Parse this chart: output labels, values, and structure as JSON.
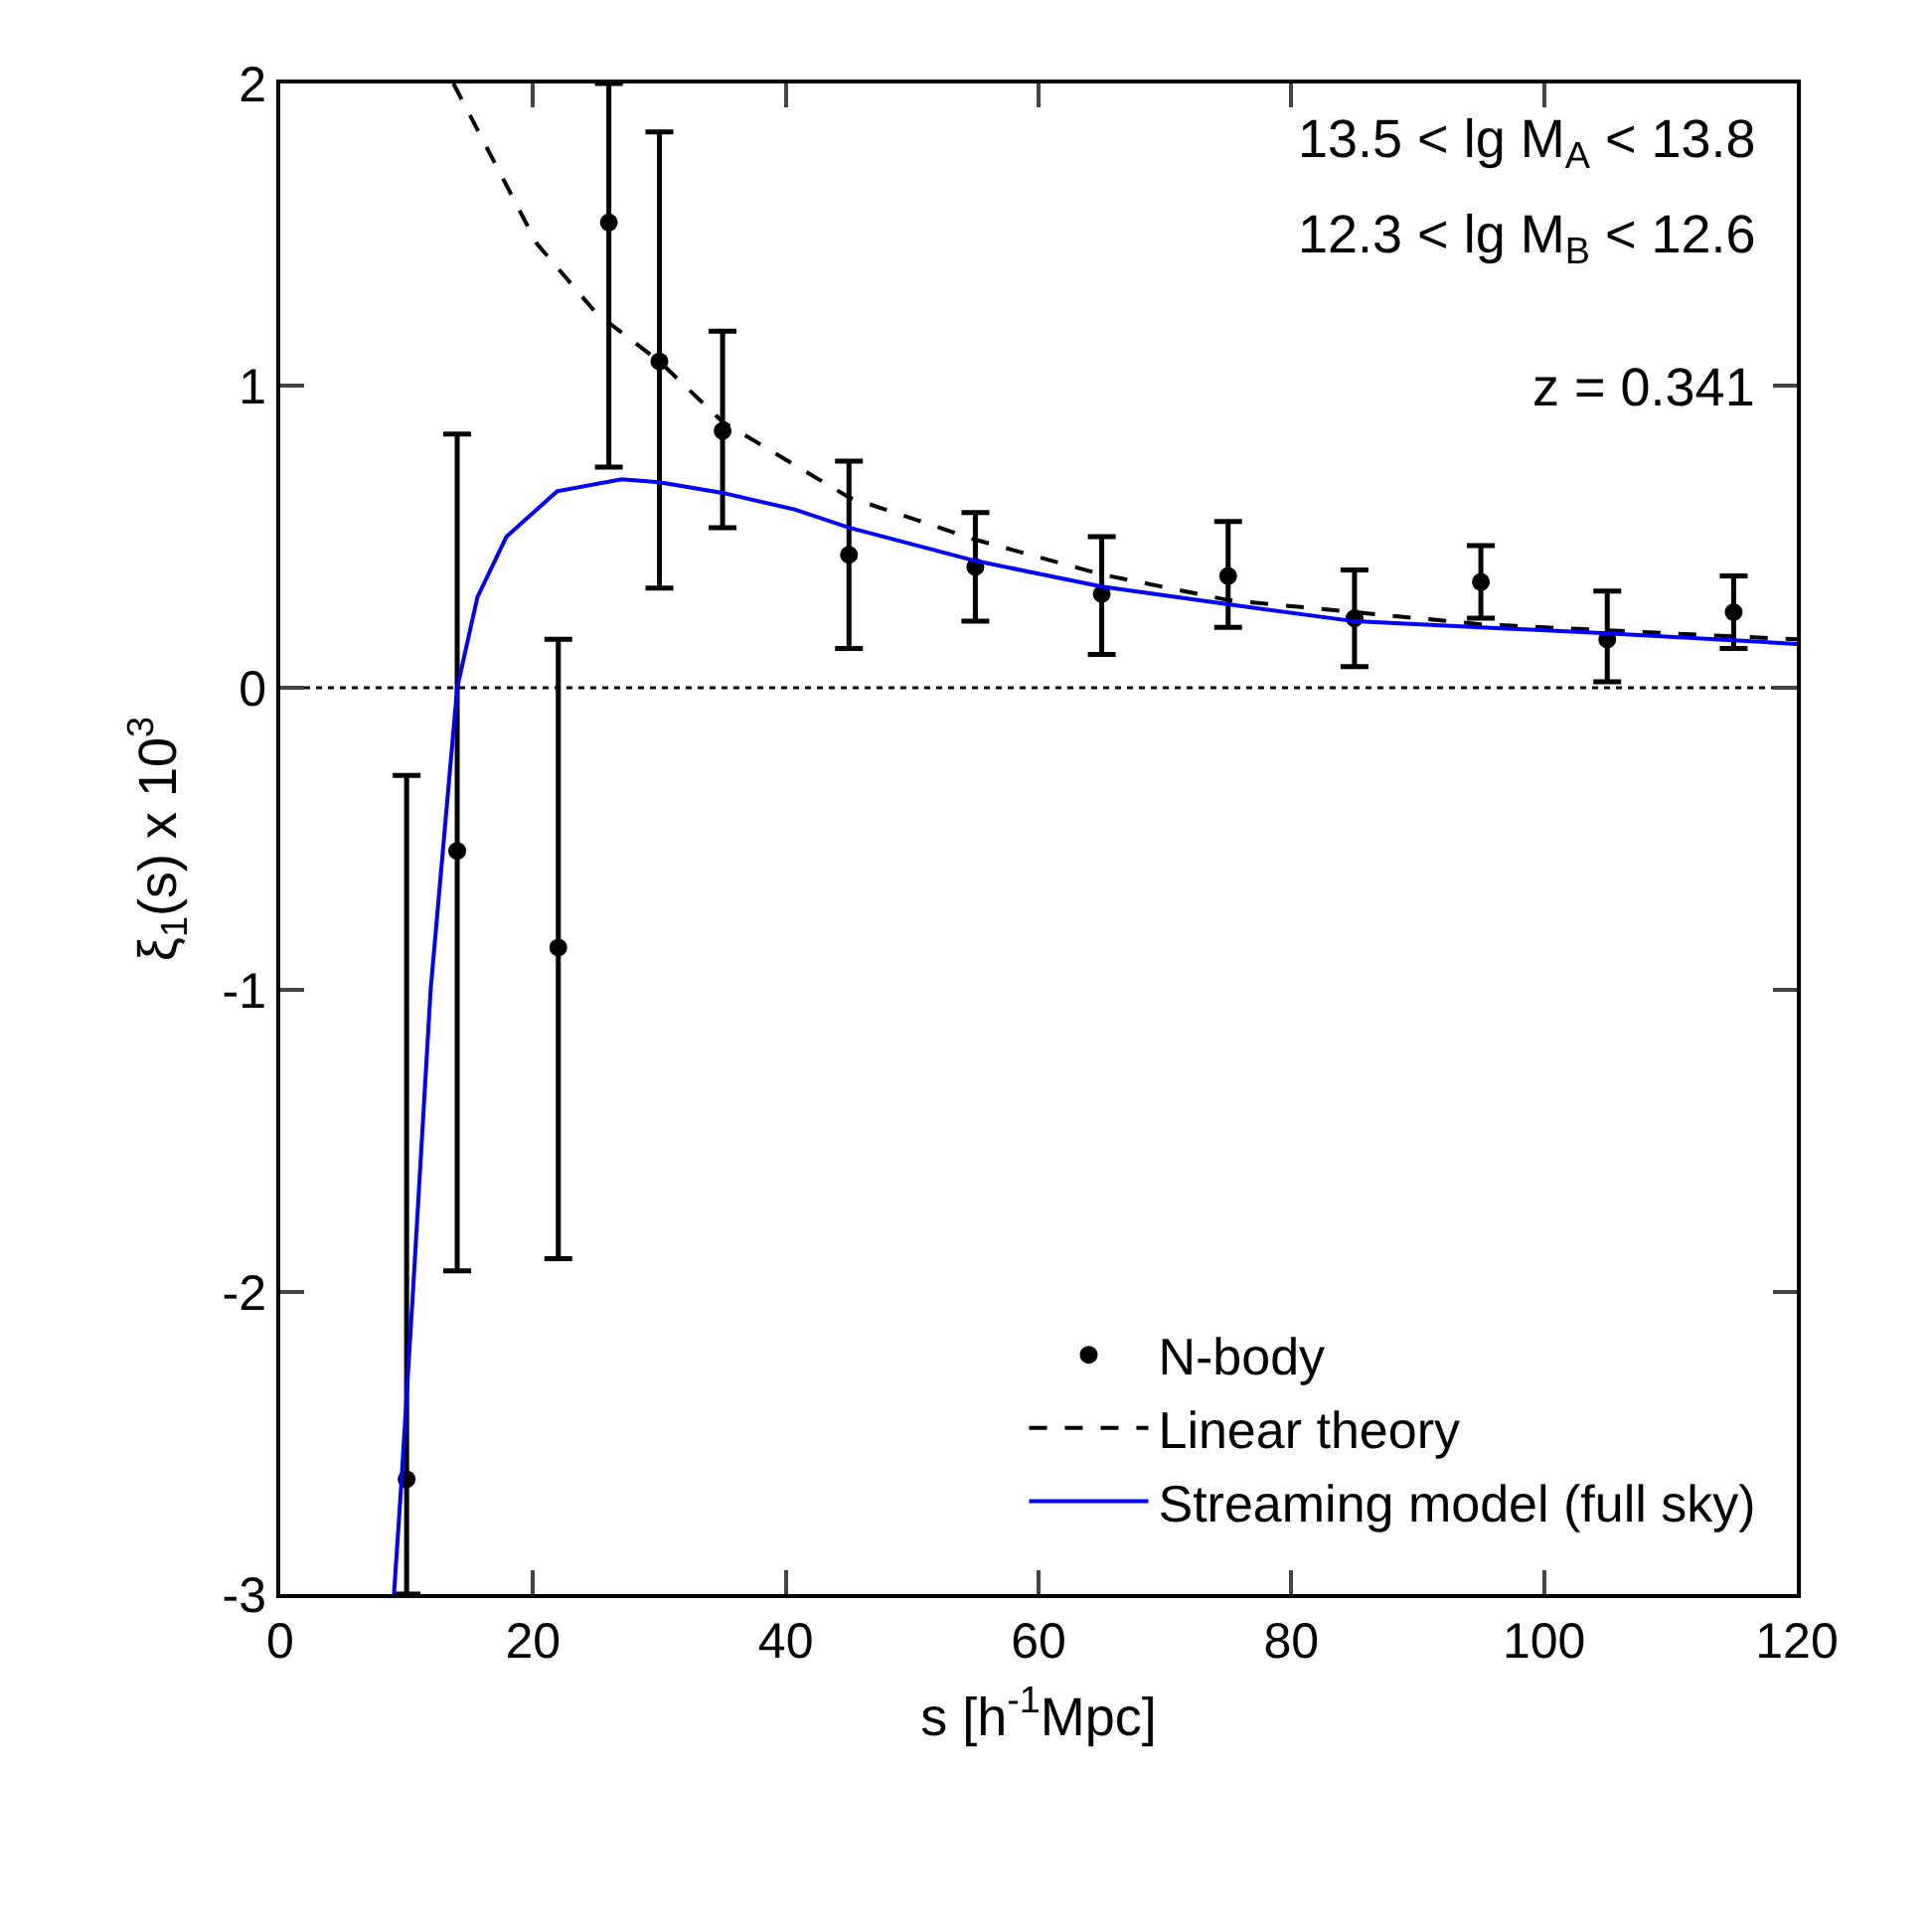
{
  "chart_data": {
    "type": "scatter",
    "xlabel": "s [h$^{-1}$Mpc]",
    "ylabel": "ξ$_{1}$(s) x 10$^{3}$",
    "xlim": [
      0,
      120
    ],
    "xticks": [
      0,
      20,
      40,
      60,
      80,
      100,
      120
    ],
    "ylim": [
      -3,
      2
    ],
    "yticks": [
      -3,
      -2,
      -1,
      0,
      1,
      2
    ],
    "grid": false,
    "legend": "bottom right",
    "annotations": [
      "13.5 < lg M$_{A}$ < 13.8",
      "12.3 < lg M$_{B}$ < 12.6",
      "z = 0.341"
    ],
    "ref_lines": [
      {
        "axis": "y",
        "value": 0,
        "color": "#000000",
        "line_style": "dotted"
      }
    ],
    "series": [
      {
        "name": "N-body",
        "color": "#000000",
        "marker": "circle",
        "x": [
          10,
          14,
          22,
          26,
          30,
          35,
          45,
          55,
          65,
          75,
          85,
          95,
          105,
          115
        ],
        "values": [
          -2.62,
          -0.54,
          -0.86,
          1.54,
          1.08,
          0.85,
          0.44,
          0.4,
          0.31,
          0.37,
          0.23,
          0.35,
          0.16,
          0.25
        ],
        "errors": [
          [
            -3,
            -0.29
          ],
          [
            -1.93,
            0.84
          ],
          [
            -1.89,
            0.16
          ],
          [
            0.73,
            2
          ],
          [
            0.33,
            1.84
          ],
          [
            0.53,
            1.18
          ],
          [
            0.13,
            0.75
          ],
          [
            0.22,
            0.58
          ],
          [
            0.11,
            0.5
          ],
          [
            0.2,
            0.55
          ],
          [
            0.07,
            0.39
          ],
          [
            0.23,
            0.47
          ],
          [
            0.02,
            0.32
          ],
          [
            0.13,
            0.37
          ]
        ]
      },
      {
        "name": "Linear theory",
        "type": "line",
        "color": "#000000",
        "line_style": "dashed",
        "marker": "none",
        "x": [
          13.7,
          20.3,
          25,
          30,
          35,
          45,
          55,
          65,
          75,
          85,
          95,
          105,
          120
        ],
        "values": [
          2.0,
          1.47,
          1.24,
          1.08,
          0.88,
          0.63,
          0.49,
          0.375,
          0.29,
          0.25,
          0.21,
          0.19,
          0.16
        ]
      },
      {
        "name": "Streaming model (full sky)",
        "type": "line",
        "color": "#0000ff",
        "line_style": "solid",
        "marker": "none",
        "x": [
          9.0,
          9.6,
          10.5,
          11.9,
          14,
          15.6,
          17.9,
          21.9,
          27,
          30,
          35,
          40.7,
          45,
          55,
          65,
          75,
          85,
          95,
          105,
          120
        ],
        "values": [
          -3,
          -2.62,
          -2,
          -1,
          0,
          0.3,
          0.5,
          0.65,
          0.69,
          0.68,
          0.645,
          0.59,
          0.53,
          0.42,
          0.335,
          0.276,
          0.22,
          0.2,
          0.18,
          0.145
        ]
      }
    ]
  }
}
